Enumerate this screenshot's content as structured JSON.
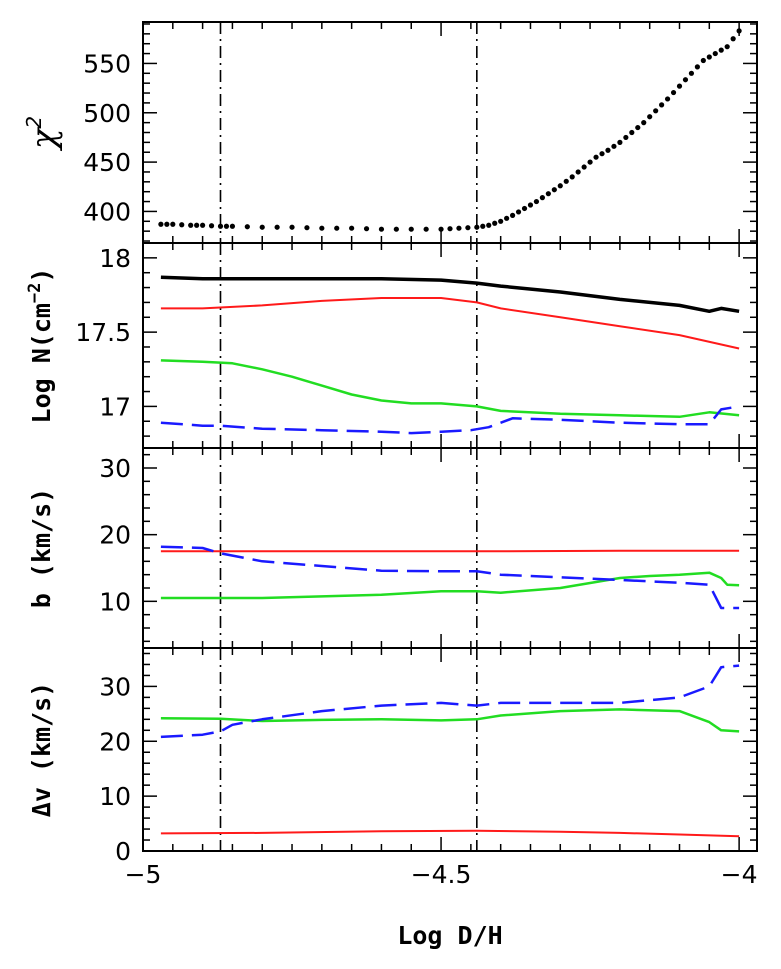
{
  "chart_data": {
    "type": "line",
    "shared_x": {
      "label": "Log D/H",
      "range": [
        -5.0,
        -3.97
      ],
      "tick_labels": [
        "−5",
        "−4.5",
        "−4"
      ],
      "ticks": [
        -5.0,
        -4.5,
        -4.0
      ]
    },
    "reference_lines_x": [
      -4.87,
      -4.44
    ],
    "panels": [
      {
        "id": "chi2",
        "ylabel_main": "χ",
        "ylabel_sup": "2",
        "ylim": [
          368,
          592
        ],
        "yticks": [
          400,
          450,
          500,
          550
        ],
        "ytick_labels": [
          "400",
          "450",
          "500",
          "550"
        ],
        "series": [
          {
            "style": "dots",
            "color": "#000000",
            "x": [
              -4.97,
              -4.95,
              -4.92,
              -4.9,
              -4.87,
              -4.85,
              -4.8,
              -4.75,
              -4.7,
              -4.65,
              -4.6,
              -4.55,
              -4.5,
              -4.47,
              -4.44,
              -4.42,
              -4.4,
              -4.38,
              -4.36,
              -4.34,
              -4.32,
              -4.3,
              -4.28,
              -4.26,
              -4.24,
              -4.22,
              -4.2,
              -4.18,
              -4.16,
              -4.14,
              -4.12,
              -4.1,
              -4.08,
              -4.06,
              -4.04,
              -4.02,
              -4.0
            ],
            "y": [
              387,
              387,
              386,
              386,
              385,
              385,
              384,
              384,
              383,
              383,
              382,
              382,
              382,
              383,
              384,
              386,
              390,
              396,
              403,
              410,
              418,
              426,
              435,
              445,
              455,
              462,
              470,
              480,
              490,
              502,
              514,
              527,
              540,
              553,
              560,
              567,
              583
            ]
          }
        ]
      },
      {
        "id": "logN",
        "ylabel": "Log N(cm",
        "ylabel_sup": "−2",
        "ylabel_end": ")",
        "ylim": [
          16.72,
          18.1
        ],
        "yticks": [
          17.0,
          17.5,
          18.0
        ],
        "ytick_labels": [
          "17",
          "17.5",
          "18"
        ],
        "series": [
          {
            "style": "solid",
            "color": "#000000",
            "width": 3.5,
            "x": [
              -4.97,
              -4.9,
              -4.8,
              -4.7,
              -4.6,
              -4.5,
              -4.44,
              -4.4,
              -4.3,
              -4.2,
              -4.1,
              -4.05,
              -4.03,
              -4.0
            ],
            "y": [
              17.87,
              17.86,
              17.86,
              17.86,
              17.86,
              17.85,
              17.83,
              17.81,
              17.77,
              17.72,
              17.68,
              17.64,
              17.66,
              17.64
            ]
          },
          {
            "style": "solid",
            "color": "#ff1a1a",
            "width": 2,
            "x": [
              -4.97,
              -4.9,
              -4.8,
              -4.7,
              -4.6,
              -4.5,
              -4.44,
              -4.4,
              -4.3,
              -4.2,
              -4.1,
              -4.0
            ],
            "y": [
              17.66,
              17.66,
              17.68,
              17.71,
              17.73,
              17.73,
              17.7,
              17.66,
              17.6,
              17.54,
              17.48,
              17.39
            ]
          },
          {
            "style": "solid",
            "color": "#22dd22",
            "width": 2.5,
            "x": [
              -4.97,
              -4.9,
              -4.85,
              -4.8,
              -4.75,
              -4.7,
              -4.65,
              -4.6,
              -4.55,
              -4.5,
              -4.44,
              -4.4,
              -4.3,
              -4.2,
              -4.1,
              -4.05,
              -4.0
            ],
            "y": [
              17.31,
              17.3,
              17.29,
              17.25,
              17.2,
              17.14,
              17.08,
              17.04,
              17.02,
              17.02,
              17.0,
              16.97,
              16.95,
              16.94,
              16.93,
              16.96,
              16.94
            ]
          },
          {
            "style": "dashed",
            "color": "#1a1aff",
            "width": 2.5,
            "x": [
              -4.97,
              -4.9,
              -4.87,
              -4.8,
              -4.7,
              -4.6,
              -4.55,
              -4.5,
              -4.45,
              -4.42,
              -4.38,
              -4.3,
              -4.2,
              -4.1,
              -4.05,
              -4.03,
              -4.0
            ],
            "y": [
              16.89,
              16.87,
              16.87,
              16.85,
              16.84,
              16.83,
              16.82,
              16.83,
              16.84,
              16.86,
              16.92,
              16.91,
              16.89,
              16.88,
              16.88,
              16.98,
              17.0
            ]
          }
        ]
      },
      {
        "id": "b",
        "ylabel": "b (km/s)",
        "ylim": [
          3,
          33
        ],
        "yticks": [
          10,
          20,
          30
        ],
        "ytick_labels": [
          "10",
          "20",
          "30"
        ],
        "series": [
          {
            "style": "solid",
            "color": "#ff1a1a",
            "width": 2,
            "x": [
              -4.97,
              -4.8,
              -4.6,
              -4.4,
              -4.2,
              -4.0
            ],
            "y": [
              17.5,
              17.5,
              17.5,
              17.5,
              17.6,
              17.6
            ]
          },
          {
            "style": "solid",
            "color": "#22dd22",
            "width": 2.5,
            "x": [
              -4.97,
              -4.8,
              -4.6,
              -4.5,
              -4.44,
              -4.4,
              -4.3,
              -4.2,
              -4.15,
              -4.1,
              -4.05,
              -4.03,
              -4.02,
              -4.0
            ],
            "y": [
              10.5,
              10.5,
              11.0,
              11.5,
              11.5,
              11.3,
              12.0,
              13.5,
              13.8,
              14.0,
              14.3,
              13.5,
              12.5,
              12.4
            ]
          },
          {
            "style": "dashed",
            "color": "#1a1aff",
            "width": 2.5,
            "x": [
              -4.97,
              -4.9,
              -4.87,
              -4.8,
              -4.7,
              -4.6,
              -4.5,
              -4.44,
              -4.4,
              -4.3,
              -4.2,
              -4.1,
              -4.05,
              -4.03,
              -4.0
            ],
            "y": [
              18.2,
              18.0,
              17.2,
              16.0,
              15.3,
              14.6,
              14.5,
              14.5,
              14.0,
              13.6,
              13.2,
              12.8,
              12.5,
              9.0,
              9.0
            ]
          }
        ]
      },
      {
        "id": "dv",
        "ylabel": "Δv (km/s)",
        "ylim": [
          0,
          37
        ],
        "yticks": [
          0,
          10,
          20,
          30
        ],
        "ytick_labels": [
          "0",
          "10",
          "20",
          "30"
        ],
        "series": [
          {
            "style": "solid",
            "color": "#ff1a1a",
            "width": 2,
            "x": [
              -4.97,
              -4.8,
              -4.6,
              -4.44,
              -4.3,
              -4.2,
              -4.1,
              -4.0
            ],
            "y": [
              3.2,
              3.3,
              3.6,
              3.7,
              3.5,
              3.3,
              3.0,
              2.7
            ]
          },
          {
            "style": "solid",
            "color": "#22dd22",
            "width": 2.5,
            "x": [
              -4.97,
              -4.87,
              -4.8,
              -4.7,
              -4.6,
              -4.5,
              -4.44,
              -4.4,
              -4.3,
              -4.2,
              -4.1,
              -4.05,
              -4.03,
              -4.0
            ],
            "y": [
              24.2,
              24.1,
              23.7,
              23.9,
              24.0,
              23.8,
              24.0,
              24.7,
              25.5,
              25.8,
              25.5,
              23.5,
              22.0,
              21.8
            ]
          },
          {
            "style": "dashed",
            "color": "#1a1aff",
            "width": 2.5,
            "x": [
              -4.97,
              -4.9,
              -4.87,
              -4.85,
              -4.8,
              -4.7,
              -4.6,
              -4.5,
              -4.44,
              -4.4,
              -4.3,
              -4.2,
              -4.1,
              -4.05,
              -4.03,
              -4.0
            ],
            "y": [
              20.8,
              21.2,
              21.8,
              23.0,
              24.0,
              25.5,
              26.5,
              27.0,
              26.5,
              27.0,
              27.0,
              27.0,
              28.0,
              30.0,
              33.5,
              33.8
            ]
          }
        ]
      }
    ]
  }
}
